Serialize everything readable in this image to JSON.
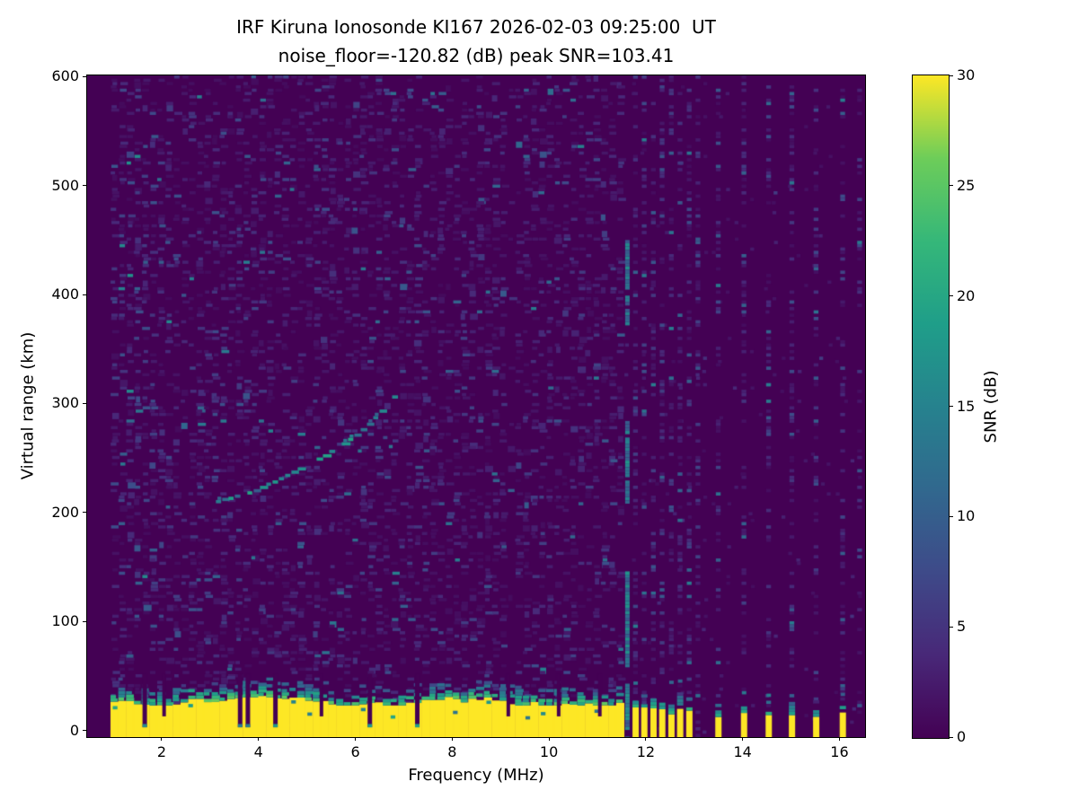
{
  "figure": {
    "title": "IRF Kiruna Ionosonde KI167 2026-02-03 09:25:00  UT",
    "subtitle": "noise_floor=-120.82 (dB) peak SNR=103.41"
  },
  "chart_data": {
    "type": "heatmap",
    "title": "IRF Kiruna Ionosonde KI167 2026-02-03 09:25:00  UT",
    "subtitle": "noise_floor=-120.82 (dB) peak SNR=103.41",
    "station": "IRF Kiruna Ionosonde KI167",
    "timestamp_ut": "2026-02-03 09:25:00",
    "noise_floor_db": -120.82,
    "peak_snr_db": 103.41,
    "xlabel": "Frequency (MHz)",
    "ylabel": "Virtual range (km)",
    "xlim": [
      0.46,
      16.53
    ],
    "ylim": [
      -6,
      601
    ],
    "xticks": [
      2,
      4,
      6,
      8,
      10,
      12,
      14,
      16
    ],
    "yticks": [
      0,
      100,
      200,
      300,
      400,
      500,
      600
    ],
    "grid": false,
    "colorbar": {
      "label": "SNR (dB)",
      "ticks": [
        0,
        5,
        10,
        15,
        20,
        25,
        30
      ],
      "min": 0,
      "max": 30,
      "colormap": "viridis"
    },
    "colors": {
      "background_min_snr": "#440154",
      "max_snr": "#fde725",
      "echo_trace": "#21918c"
    },
    "features": {
      "data_start_mhz": 0.92,
      "ground_clutter": {
        "freq_range_mhz": [
          0.92,
          11.62
        ],
        "solid_top_km_range": [
          23,
          36
        ],
        "transition_depth_km": 22,
        "deep_notch_freqs_mhz": [
          1.65,
          3.62,
          3.78,
          4.35,
          6.3,
          7.28
        ],
        "shallow_notch_freqs_mhz": [
          2.05,
          5.3,
          9.16,
          10.2,
          11.05
        ]
      },
      "echo_trace": {
        "snr_db_range": [
          9,
          20
        ],
        "points_mhz_km": [
          [
            3.2,
            210
          ],
          [
            3.33,
            212
          ],
          [
            3.46,
            213
          ],
          [
            3.59,
            215
          ],
          [
            3.72,
            216
          ],
          [
            3.85,
            218
          ],
          [
            3.98,
            220
          ],
          [
            4.11,
            223
          ],
          [
            4.24,
            226
          ],
          [
            4.37,
            228
          ],
          [
            4.5,
            231
          ],
          [
            4.63,
            234
          ],
          [
            4.76,
            237
          ],
          [
            4.89,
            240
          ],
          [
            5.02,
            243
          ],
          [
            5.15,
            246
          ],
          [
            5.28,
            249
          ],
          [
            5.41,
            252
          ],
          [
            5.54,
            256
          ],
          [
            5.67,
            259
          ],
          [
            5.8,
            263
          ],
          [
            5.93,
            267
          ],
          [
            6.06,
            271
          ],
          [
            6.19,
            276
          ],
          [
            6.32,
            281
          ],
          [
            6.45,
            287
          ],
          [
            6.58,
            293
          ],
          [
            6.71,
            299
          ],
          [
            6.84,
            306
          ]
        ],
        "stray_points_mhz_km": [
          [
            6.74,
            262
          ],
          [
            6.1,
            258
          ],
          [
            3.9,
            160
          ]
        ]
      },
      "rfi_line_11_6": {
        "freq_mhz": 11.62,
        "snr_db_range": [
          9,
          18
        ],
        "segments_km": [
          [
            -6,
            43
          ],
          [
            58,
            146
          ],
          [
            210,
            284
          ],
          [
            372,
            399
          ],
          [
            407,
            450
          ]
        ]
      },
      "rfi_columns_mhz": [
        11.79,
        11.97,
        12.16,
        12.34,
        12.53,
        12.71,
        12.9,
        13.08,
        13.5,
        14.03,
        14.54,
        15.02,
        15.52,
        16.07,
        16.42
      ],
      "rfi_bottom_bars_mhz": [
        11.79,
        11.97,
        12.16,
        12.34,
        12.53,
        12.71,
        12.9,
        13.5,
        14.03,
        14.54,
        15.02,
        15.52,
        16.07
      ],
      "quiet_column_mhz": 9.16,
      "noise_speckle": {
        "density_below_11_6": 0.44,
        "density_above_11_6": 0.03,
        "typical_db": "1-6",
        "max_db": 17
      }
    }
  }
}
